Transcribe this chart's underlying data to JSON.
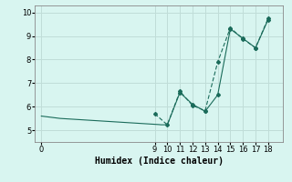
{
  "title": "",
  "xlabel": "Humidex (Indice chaleur)",
  "ylabel": "",
  "background_color": "#d8f5f0",
  "grid_color": "#c0ddd8",
  "line_color": "#1a6b5a",
  "xlim": [
    -0.5,
    19.2
  ],
  "ylim": [
    4.5,
    10.3
  ],
  "xticks": [
    0,
    9,
    10,
    11,
    12,
    13,
    14,
    15,
    16,
    17,
    18
  ],
  "yticks": [
    5,
    6,
    7,
    8,
    9,
    10
  ],
  "series1_x": [
    0,
    0.3,
    0.6,
    0.9,
    1.2,
    1.5,
    1.8,
    2.1,
    2.4,
    2.7,
    3.0,
    3.3,
    3.6,
    3.9,
    4.2,
    4.5,
    4.8,
    5.1,
    5.4,
    5.7,
    6.0,
    6.3,
    6.6,
    6.9,
    7.2,
    7.5,
    7.8,
    8.1,
    8.4,
    8.7,
    9.0,
    9.3,
    9.5,
    10,
    11,
    12,
    13,
    14,
    15,
    16,
    17,
    18
  ],
  "series1_y": [
    5.6,
    5.58,
    5.56,
    5.54,
    5.52,
    5.5,
    5.49,
    5.48,
    5.47,
    5.46,
    5.45,
    5.44,
    5.43,
    5.42,
    5.41,
    5.4,
    5.39,
    5.38,
    5.37,
    5.36,
    5.35,
    5.34,
    5.33,
    5.32,
    5.31,
    5.3,
    5.29,
    5.28,
    5.27,
    5.26,
    5.25,
    5.24,
    5.23,
    5.23,
    6.6,
    6.1,
    5.8,
    6.5,
    9.3,
    8.9,
    8.5,
    9.7
  ],
  "series1_markers_from": 34,
  "series2_x": [
    9,
    10,
    11,
    12,
    13,
    14,
    15,
    16,
    17,
    18
  ],
  "series2_y": [
    5.7,
    5.23,
    6.65,
    6.05,
    5.83,
    7.9,
    9.35,
    8.88,
    8.5,
    9.75
  ]
}
